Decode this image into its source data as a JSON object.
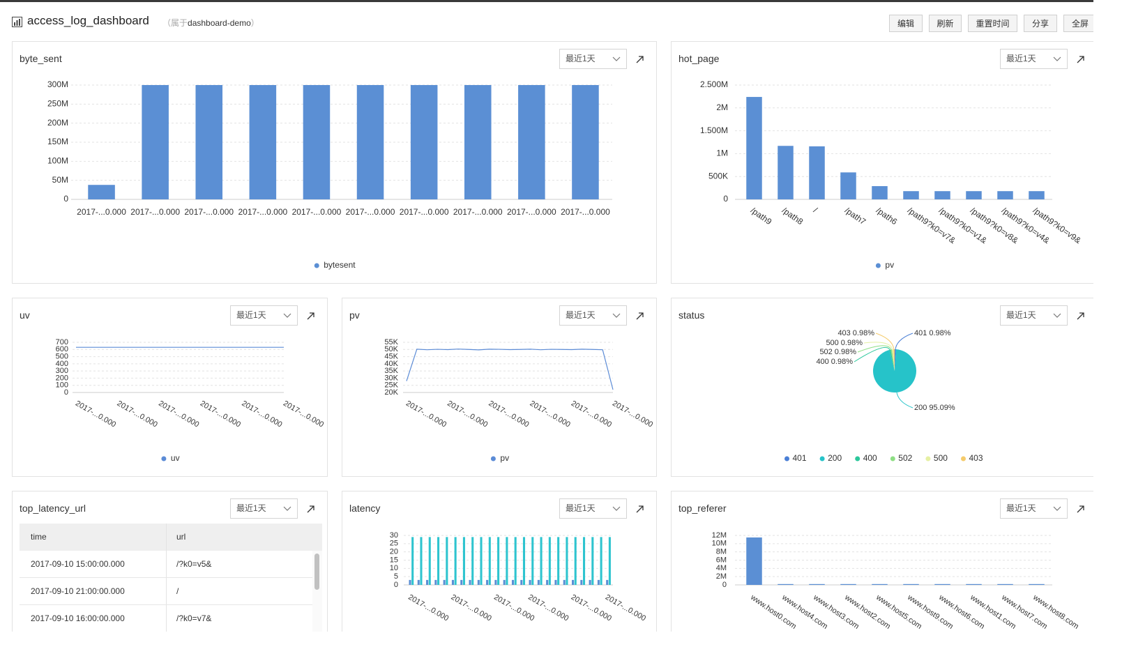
{
  "header": {
    "title": "access_log_dashboard",
    "owner_prefix": "（属于",
    "owner": "dashboard-demo",
    "owner_suffix": "）"
  },
  "toolbar": [
    "编辑",
    "刷新",
    "重置时间",
    "分享",
    "全屏"
  ],
  "panels": [
    {
      "title": "byte_sent",
      "time_range": "最近1天",
      "chart": {
        "type": "bar",
        "categories": [
          "2017-...0.000",
          "2017-...0.000",
          "2017-...0.000",
          "2017-...0.000",
          "2017-...0.000",
          "2017-...0.000",
          "2017-...0.000",
          "2017-...0.000",
          "2017-...0.000",
          "2017-...0.000"
        ],
        "series": [
          {
            "name": "bytesent",
            "color": "#5b8fd4",
            "values": [
              38000000,
              300000000,
              300000000,
              300000000,
              300000000,
              300000000,
              300000000,
              300000000,
              300000000,
              300000000
            ]
          }
        ],
        "ylim": [
          0,
          300000000
        ],
        "yticks": [
          0,
          {
            "value": 50000000,
            "label": "50M"
          },
          {
            "value": 100000000,
            "label": "100M"
          },
          {
            "value": 150000000,
            "label": "150M"
          },
          {
            "value": 200000000,
            "label": "200M"
          },
          {
            "value": 250000000,
            "label": "250M"
          },
          {
            "value": 300000000,
            "label": "300M"
          }
        ],
        "grid": true,
        "legend": "bottom"
      }
    },
    {
      "title": "hot_page",
      "time_range": "最近1天",
      "chart": {
        "type": "bar",
        "categories": [
          "/path9",
          "/path8",
          "/",
          "/path7",
          "/path6",
          "/path9?k0=v7&",
          "/path9?k0=v1&",
          "/path9?k0=v8&",
          "/path9?k0=v4&",
          "/path9?k0=v9&"
        ],
        "series": [
          {
            "name": "pv",
            "color": "#5b8fd4",
            "values": [
              2240000,
              1170000,
              1160000,
              590000,
              290000,
              180000,
              180000,
              180000,
              180000,
              180000
            ]
          }
        ],
        "ylim": [
          0,
          2500000
        ],
        "yticks": [
          0,
          {
            "value": 500000,
            "label": "500K"
          },
          {
            "value": 1000000,
            "label": "1M"
          },
          {
            "value": 1500000,
            "label": "1.500M"
          },
          {
            "value": 2000000,
            "label": "2M"
          },
          {
            "value": 2500000,
            "label": "2.500M"
          }
        ],
        "grid": true,
        "legend": "bottom"
      }
    },
    {
      "title": "uv",
      "time_range": "最近1天",
      "chart": {
        "type": "line",
        "categories": [
          "2017-...0.000",
          "2017-...0.000",
          "2017-...0.000",
          "2017-...0.000",
          "2017-...0.000",
          "2017-...0.000"
        ],
        "series": [
          {
            "name": "uv",
            "color": "#5b8bd6",
            "values": [
              630,
              630,
              630,
              630,
              630,
              630
            ]
          }
        ],
        "ylim": [
          0,
          700
        ],
        "yticks": [
          0,
          100,
          200,
          300,
          400,
          500,
          600,
          700
        ],
        "grid": true,
        "legend": "bottom"
      }
    },
    {
      "title": "pv",
      "time_range": "最近1天",
      "chart": {
        "type": "line",
        "categories": [
          "2017-...0.000",
          null,
          null,
          null,
          "2017-...0.000",
          null,
          null,
          null,
          "2017-...0.000",
          null,
          null,
          null,
          "2017-...0.000",
          null,
          null,
          null,
          "2017-...0.000",
          null,
          null,
          null,
          "2017-...0.000"
        ],
        "series": [
          {
            "name": "pv",
            "color": "#5b8bd6",
            "values": [
              28000,
              50200,
              49800,
              50100,
              49900,
              50300,
              50000,
              49700,
              50200,
              50100,
              49900,
              50000,
              50200,
              49800,
              50100,
              50000,
              49900,
              50200,
              50000,
              49800,
              22000
            ]
          }
        ],
        "ylim": [
          20000,
          55000
        ],
        "yticks": [
          {
            "value": 20000,
            "label": "20K"
          },
          {
            "value": 25000,
            "label": "25K"
          },
          {
            "value": 30000,
            "label": "30K"
          },
          {
            "value": 35000,
            "label": "35K"
          },
          {
            "value": 40000,
            "label": "40K"
          },
          {
            "value": 45000,
            "label": "45K"
          },
          {
            "value": 50000,
            "label": "50K"
          },
          {
            "value": 55000,
            "label": "55K"
          }
        ],
        "grid": true,
        "legend": "bottom"
      }
    },
    {
      "title": "status",
      "time_range": "最近1天",
      "chart": {
        "type": "pie",
        "categories": [
          "401",
          "200",
          "400",
          "502",
          "500",
          "403"
        ],
        "values": [
          0.98,
          95.09,
          0.98,
          0.98,
          0.98,
          0.98
        ],
        "value_labels": [
          "0.98%",
          "95.09%",
          "0.98%",
          "0.98%",
          "0.98%",
          "0.98%"
        ],
        "colors": [
          "#4a7fd6",
          "#26c3c9",
          "#2bc79b",
          "#8ede84",
          "#e6f0a3",
          "#f5cb6b"
        ],
        "legend": "bottom"
      }
    },
    {
      "title": "top_latency_url",
      "time_range": "最近1天",
      "table": {
        "columns": [
          "time",
          "url"
        ],
        "rows": [
          [
            "2017-09-10 15:00:00.000",
            "/?k0=v5&"
          ],
          [
            "2017-09-10 21:00:00.000",
            "/"
          ],
          [
            "2017-09-10 16:00:00.000",
            "/?k0=v7&"
          ]
        ]
      }
    },
    {
      "title": "latency",
      "time_range": "最近1天",
      "chart": {
        "type": "bar",
        "categories": [
          "2017-...0.000",
          null,
          null,
          null,
          null,
          "2017-...0.000",
          null,
          null,
          null,
          null,
          "2017-...0.000",
          null,
          null,
          null,
          "2017-...0.000",
          null,
          null,
          null,
          null,
          "2017-...0.000",
          null,
          null,
          null,
          "2017-...0.000"
        ],
        "series": [
          {
            "color": "#5b8fd4",
            "values": [
              3,
              3,
              3,
              3,
              3,
              3,
              3,
              3,
              3,
              3,
              3,
              3,
              3,
              3,
              3,
              3,
              3,
              3,
              3,
              3,
              3,
              3,
              3,
              3
            ]
          },
          {
            "color": "#2ec4cf",
            "values": [
              29,
              29,
              29,
              29,
              29,
              29,
              29,
              29,
              29,
              29,
              29,
              29,
              29,
              29,
              29,
              29,
              29,
              29,
              29,
              29,
              29,
              29,
              29,
              29
            ]
          }
        ],
        "ylim": [
          0,
          30
        ],
        "yticks": [
          0,
          5,
          10,
          15,
          20,
          25,
          30
        ],
        "grid": true
      }
    },
    {
      "title": "top_referer",
      "time_range": "最近1天",
      "chart": {
        "type": "bar",
        "categories": [
          "www.host0.com",
          "www.host4.com",
          "www.host3.com",
          "www.host2.com",
          "www.host5.com",
          "www.host9.com",
          "www.host6.com",
          "www.host1.com",
          "www.host7.com",
          "www.host8.com"
        ],
        "series": [
          {
            "color": "#5b8fd4",
            "values": [
              11500000,
              200000,
              200000,
              200000,
              200000,
              200000,
              200000,
              200000,
              200000,
              200000
            ]
          }
        ],
        "ylim": [
          0,
          12000000
        ],
        "yticks": [
          0,
          {
            "value": 2000000,
            "label": "2M"
          },
          {
            "value": 4000000,
            "label": "4M"
          },
          {
            "value": 6000000,
            "label": "6M"
          },
          {
            "value": 8000000,
            "label": "8M"
          },
          {
            "value": 10000000,
            "label": "10M"
          },
          {
            "value": 12000000,
            "label": "12M"
          }
        ],
        "grid": true
      }
    }
  ]
}
